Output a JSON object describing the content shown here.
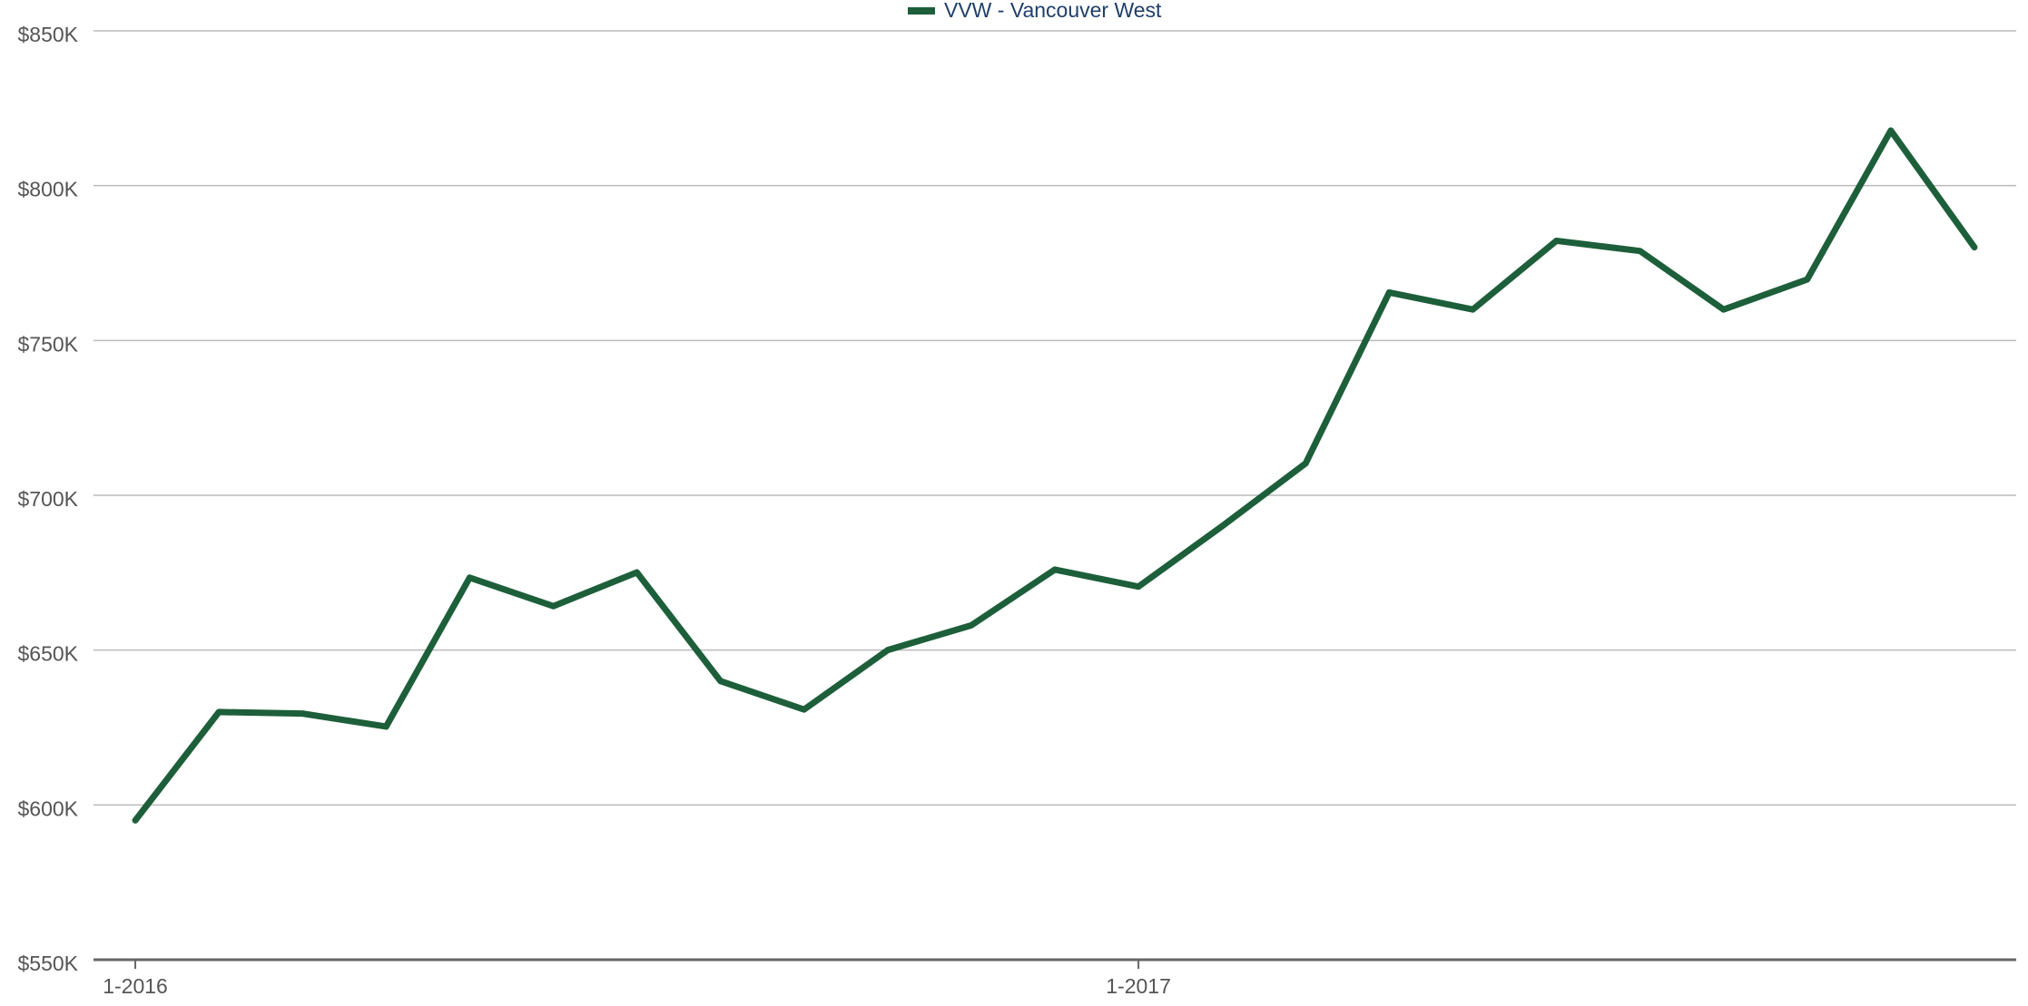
{
  "chart_data": {
    "type": "line",
    "categories": [
      "1-2016",
      null,
      null,
      null,
      null,
      null,
      null,
      null,
      null,
      null,
      null,
      null,
      "1-2017",
      null,
      null,
      null,
      null,
      null,
      null,
      null,
      null,
      null,
      null
    ],
    "series": [
      {
        "name": "VVW - Vancouver West",
        "color": "#1d5f3a",
        "values": [
          595000,
          630000,
          629500,
          625300,
          673400,
          664200,
          675100,
          640000,
          630800,
          650000,
          658000,
          676000,
          670500,
          690000,
          710300,
          765500,
          760000,
          782200,
          778900,
          760000,
          769700,
          817800,
          780100
        ]
      }
    ],
    "ylim": [
      550000,
      850000
    ],
    "yticks": [
      {
        "value": 550000,
        "label": "$550K"
      },
      {
        "value": 600000,
        "label": "$600K"
      },
      {
        "value": 650000,
        "label": "$650K"
      },
      {
        "value": 700000,
        "label": "$700K"
      },
      {
        "value": 750000,
        "label": "$750K"
      },
      {
        "value": 800000,
        "label": "$800K"
      },
      {
        "value": 850000,
        "label": "$850K"
      }
    ],
    "grid": true
  }
}
